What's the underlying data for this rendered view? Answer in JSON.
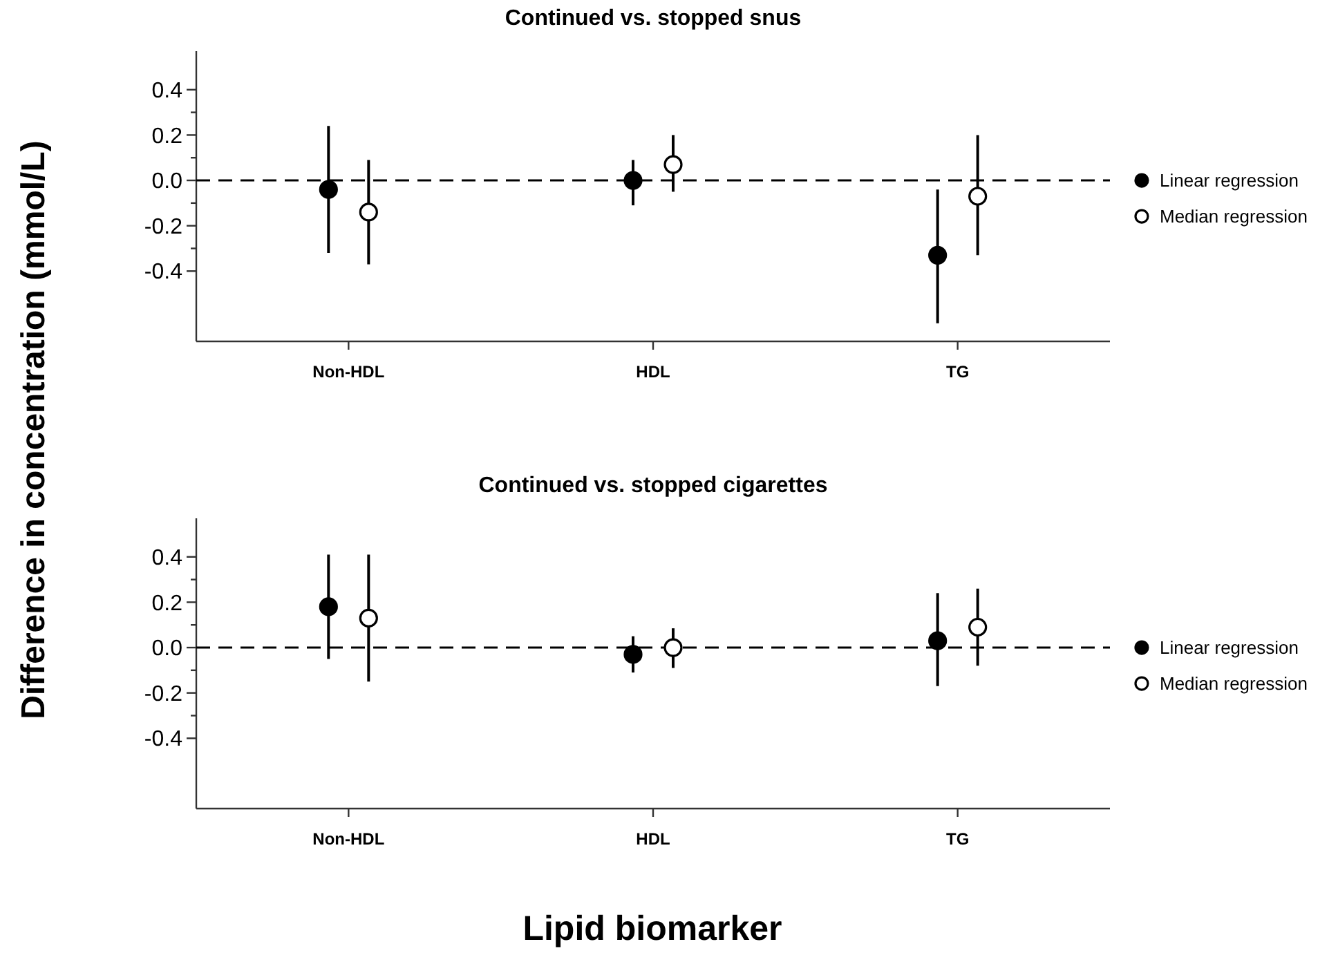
{
  "chart_data": [
    {
      "type": "scatter",
      "title": "Continued vs. stopped snus",
      "ylabel": "Difference in concentration (mmol/L)",
      "categories": [
        "Non-HDL",
        "HDL",
        "TG"
      ],
      "ylim": [
        -0.71,
        0.57
      ],
      "yticks": [
        {
          "value": -0.4,
          "label": "-0.4"
        },
        {
          "value": -0.3,
          "label": null
        },
        {
          "value": -0.2,
          "label": "-0.2"
        },
        {
          "value": -0.1,
          "label": null
        },
        {
          "value": 0,
          "label": "0.0"
        },
        {
          "value": 0.1,
          "label": null
        },
        {
          "value": 0.2,
          "label": "0.2"
        },
        {
          "value": 0.3,
          "label": null
        },
        {
          "value": 0.4,
          "label": "0.4"
        }
      ],
      "marker": "circle",
      "legend": "right",
      "ref_lines": [
        {
          "axis": "y",
          "value": 0,
          "line_style": "dashed"
        }
      ],
      "series": [
        {
          "name": "Linear regression",
          "color": "#000000",
          "values": [
            -0.04,
            0.0,
            -0.33
          ],
          "errors": [
            [
              -0.32,
              0.24
            ],
            [
              -0.11,
              0.09
            ],
            [
              -0.63,
              -0.04
            ]
          ]
        },
        {
          "name": "Median regression",
          "color": "#ffffff",
          "values": [
            -0.14,
            0.07,
            -0.07
          ],
          "errors": [
            [
              -0.37,
              0.09
            ],
            [
              -0.05,
              0.2
            ],
            [
              -0.33,
              0.2
            ]
          ]
        }
      ]
    },
    {
      "type": "scatter",
      "title": "Continued vs. stopped cigarettes",
      "xlabel": "Lipid biomarker",
      "categories": [
        "Non-HDL",
        "HDL",
        "TG"
      ],
      "ylim": [
        -0.71,
        0.57
      ],
      "yticks": [
        {
          "value": -0.4,
          "label": "-0.4"
        },
        {
          "value": -0.3,
          "label": null
        },
        {
          "value": -0.2,
          "label": "-0.2"
        },
        {
          "value": -0.1,
          "label": null
        },
        {
          "value": 0,
          "label": "0.0"
        },
        {
          "value": 0.1,
          "label": null
        },
        {
          "value": 0.2,
          "label": "0.2"
        },
        {
          "value": 0.3,
          "label": null
        },
        {
          "value": 0.4,
          "label": "0.4"
        }
      ],
      "marker": "circle",
      "legend": "right",
      "ref_lines": [
        {
          "axis": "y",
          "value": 0,
          "line_style": "dashed"
        }
      ],
      "series": [
        {
          "name": "Linear regression",
          "color": "#000000",
          "values": [
            0.18,
            -0.03,
            0.03
          ],
          "errors": [
            [
              -0.05,
              0.41
            ],
            [
              -0.11,
              0.05
            ],
            [
              -0.17,
              0.24
            ]
          ]
        },
        {
          "name": "Median regression",
          "color": "#ffffff",
          "values": [
            0.13,
            0.0,
            0.09
          ],
          "errors": [
            [
              -0.15,
              0.41
            ],
            [
              -0.09,
              0.085
            ],
            [
              -0.08,
              0.26
            ]
          ]
        }
      ]
    }
  ]
}
